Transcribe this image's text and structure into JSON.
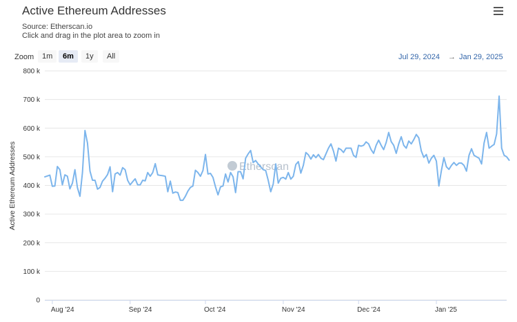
{
  "header": {
    "title": "Active Ethereum Addresses",
    "source": "Source: Etherscan.io",
    "hint": "Click and drag in the plot area to zoom in",
    "menu_icon": "hamburger-menu-icon"
  },
  "zoom": {
    "label": "Zoom",
    "buttons": [
      "1m",
      "6m",
      "1y",
      "All"
    ],
    "selected": "6m"
  },
  "range": {
    "from": "Jul 29, 2024",
    "arrow": "→",
    "to": "Jan 29, 2025"
  },
  "watermark": "Etherscan",
  "chart_data": {
    "type": "line",
    "title": "Active Ethereum Addresses",
    "ylabel": "Active Ethereum Addresses",
    "ylim": [
      0,
      800000
    ],
    "yticks": [
      0,
      100000,
      200000,
      300000,
      400000,
      500000,
      600000,
      700000,
      800000
    ],
    "ytick_labels": [
      "0",
      "100 k",
      "200 k",
      "300 k",
      "400 k",
      "500 k",
      "600 k",
      "700 k",
      "800 k"
    ],
    "xlim": [
      "2024-07-29",
      "2025-01-29"
    ],
    "xticks": [
      "2024-08-01",
      "2024-09-01",
      "2024-10-01",
      "2024-11-01",
      "2024-12-01",
      "2025-01-01"
    ],
    "xtick_labels": [
      "Aug '24",
      "Sep '24",
      "Oct '24",
      "Nov '24",
      "Dec '24",
      "Jan '25"
    ],
    "grid": true,
    "line_color": "#7cb5ec",
    "series": [
      {
        "start_date": "2024-07-29",
        "interval_days": 1,
        "values": [
          430000,
          433000,
          436000,
          397000,
          398000,
          466000,
          455000,
          402000,
          437000,
          432000,
          388000,
          408000,
          455000,
          392000,
          362000,
          445000,
          592000,
          548000,
          450000,
          418000,
          418000,
          387000,
          393000,
          415000,
          425000,
          438000,
          465000,
          378000,
          440000,
          445000,
          436000,
          462000,
          455000,
          418000,
          402000,
          413000,
          423000,
          402000,
          402000,
          418000,
          416000,
          445000,
          432000,
          445000,
          476000,
          437000,
          435000,
          434000,
          432000,
          378000,
          415000,
          373000,
          377000,
          375000,
          348000,
          348000,
          362000,
          380000,
          393000,
          398000,
          453000,
          445000,
          432000,
          452000,
          508000,
          440000,
          442000,
          428000,
          395000,
          367000,
          395000,
          398000,
          440000,
          412000,
          445000,
          430000,
          375000,
          448000,
          448000,
          423000,
          495000,
          510000,
          522000,
          480000,
          487000,
          475000,
          465000,
          455000,
          452000,
          418000,
          378000,
          405000,
          475000,
          408000,
          425000,
          428000,
          422000,
          445000,
          422000,
          432000,
          473000,
          483000,
          443000,
          470000,
          515000,
          507000,
          492000,
          507000,
          497000,
          508000,
          495000,
          490000,
          510000,
          530000,
          545000,
          520000,
          485000,
          530000,
          525000,
          515000,
          530000,
          530000,
          530000,
          505000,
          498000,
          540000,
          537000,
          540000,
          552000,
          545000,
          525000,
          512000,
          540000,
          558000,
          540000,
          525000,
          550000,
          585000,
          553000,
          540000,
          512000,
          545000,
          570000,
          540000,
          530000,
          555000,
          545000,
          560000,
          578000,
          566000,
          520000,
          498000,
          508000,
          478000,
          495000,
          505000,
          485000,
          398000,
          452000,
          497000,
          465000,
          456000,
          470000,
          480000,
          470000,
          478000,
          478000,
          470000,
          450000,
          505000,
          528000,
          505000,
          500000,
          495000,
          475000,
          548000,
          585000,
          530000,
          537000,
          543000,
          580000,
          712000,
          530000,
          505000,
          500000,
          488000
        ]
      }
    ]
  }
}
